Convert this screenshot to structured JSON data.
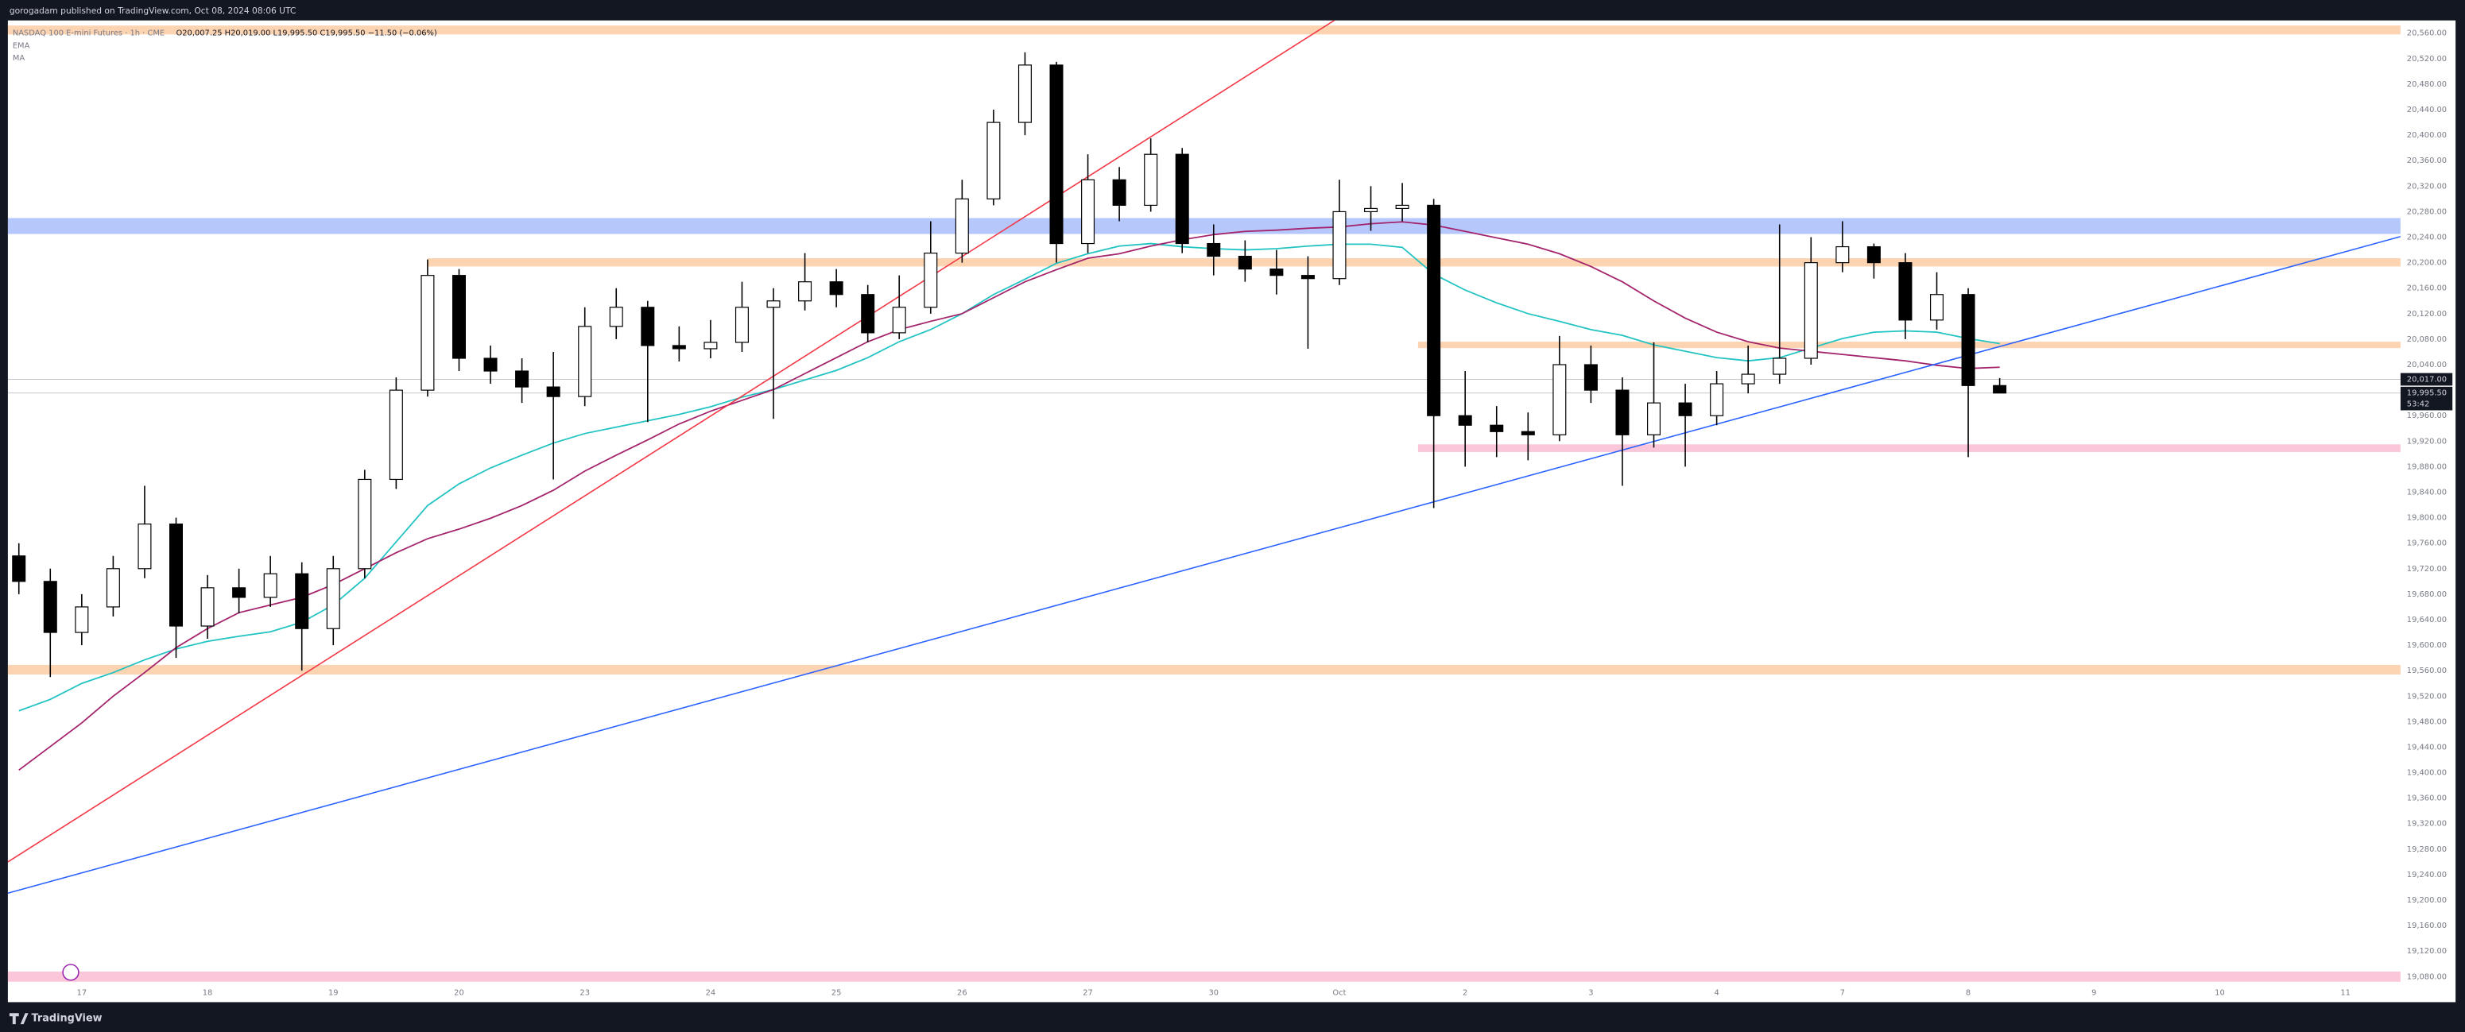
{
  "header": {
    "text": "gorogadam published on TradingView.com, Oct 08, 2024 08:06 UTC"
  },
  "footer": {
    "brand": "TradingView"
  },
  "chart_data": {
    "type": "candlestick",
    "legend": {
      "symbol": "NASDAQ 100 E-mini Futures · 1h · CME",
      "ohlc": "O20,007.25 H20,019.00 L19,995.50 C19,995.50 −11.50 (−0.06%)"
    },
    "categories": [
      null,
      null,
      "17",
      null,
      null,
      null,
      "18",
      null,
      null,
      null,
      "19",
      null,
      null,
      null,
      "20",
      null,
      null,
      null,
      "23",
      null,
      null,
      null,
      "24",
      null,
      null,
      null,
      "25",
      null,
      null,
      null,
      "26",
      null,
      null,
      null,
      "27",
      null,
      null,
      null,
      "30",
      null,
      null,
      null,
      "Oct",
      null,
      null,
      null,
      "2",
      null,
      null,
      null,
      "3",
      null,
      null,
      null,
      "4",
      null,
      null,
      null,
      "7",
      null,
      null,
      null,
      "8",
      null,
      null,
      null,
      "9",
      null,
      null,
      null,
      "10",
      null,
      null,
      null,
      "11",
      null
    ],
    "open": [
      19740,
      19700,
      19620,
      19660,
      19720,
      19790,
      19630,
      19690,
      19675,
      19712,
      19626,
      19720,
      19860,
      20000,
      20180,
      20050,
      20030,
      20005,
      19990,
      20100,
      20130,
      20070,
      20065,
      20075,
      20130,
      20140,
      20170,
      20150,
      20090,
      20130,
      20215,
      20300,
      20420,
      20510,
      20230,
      20330,
      20290,
      20370,
      20230,
      20210,
      20190,
      20180,
      20175,
      20280,
      20285,
      20290,
      19960,
      19945,
      19935,
      19930,
      20040,
      20000,
      19930,
      19980,
      19960,
      20010,
      20025,
      20050,
      20200,
      20225,
      20200,
      20110,
      20150,
      20007.25,
      null,
      null,
      null,
      null,
      null,
      null,
      null,
      null,
      null,
      null,
      null,
      null
    ],
    "high": [
      19760,
      19720,
      19680,
      19740,
      19850,
      19800,
      19710,
      19720,
      19740,
      19730,
      19740,
      19875,
      20020,
      20205,
      20190,
      20070,
      20050,
      20060,
      20130,
      20160,
      20140,
      20100,
      20110,
      20170,
      20160,
      20215,
      20190,
      20165,
      20180,
      20265,
      20330,
      20440,
      20530,
      20515,
      20370,
      20350,
      20395,
      20380,
      20260,
      20235,
      20220,
      20210,
      20330,
      20320,
      20325,
      20300,
      20030,
      19975,
      19965,
      20085,
      20070,
      20020,
      20075,
      20010,
      20030,
      20070,
      20260,
      20240,
      20265,
      20230,
      20215,
      20185,
      20160,
      20019,
      null,
      null,
      null,
      null,
      null,
      null,
      null,
      null,
      null,
      null,
      null,
      null
    ],
    "low": [
      19680,
      19550,
      19600,
      19645,
      19705,
      19580,
      19610,
      19650,
      19660,
      19560,
      19600,
      19705,
      19845,
      19990,
      20030,
      20010,
      19980,
      19860,
      19975,
      20080,
      19950,
      20045,
      20050,
      20060,
      19955,
      20125,
      20130,
      20075,
      20080,
      20120,
      20200,
      20290,
      20400,
      20200,
      20215,
      20265,
      20280,
      20215,
      20180,
      20170,
      20150,
      20065,
      20165,
      20250,
      20265,
      19815,
      19880,
      19895,
      19890,
      19920,
      19980,
      19850,
      19910,
      19880,
      19945,
      19995,
      20010,
      20040,
      20185,
      20175,
      20080,
      20095,
      19895,
      19995.5,
      null,
      null,
      null,
      null,
      null,
      null,
      null,
      null,
      null,
      null,
      null,
      null
    ],
    "close": [
      19700,
      19620,
      19660,
      19720,
      19790,
      19630,
      19690,
      19675,
      19712,
      19626,
      19720,
      19860,
      20000,
      20180,
      20050,
      20030,
      20005,
      19990,
      20100,
      20130,
      20070,
      20065,
      20075,
      20130,
      20140,
      20170,
      20150,
      20090,
      20130,
      20215,
      20300,
      20420,
      20510,
      20230,
      20330,
      20290,
      20370,
      20230,
      20210,
      20190,
      20180,
      20175,
      20280,
      20285,
      20290,
      19960,
      19945,
      19935,
      19930,
      20040,
      20000,
      19930,
      19980,
      19960,
      20010,
      20025,
      20050,
      20200,
      20225,
      20200,
      20110,
      20150,
      20007.25,
      19995.5,
      null,
      null,
      null,
      null,
      null,
      null,
      null,
      null,
      null,
      null,
      null,
      null
    ],
    "up_color": "#ffffff",
    "down_color": "#000000",
    "outline_color": "#000000",
    "series": [
      {
        "name": "EMA",
        "color": "#22c3c3",
        "values": [
          19497,
          19515,
          19540,
          19557,
          19577,
          19594,
          19606,
          19614,
          19621,
          19636,
          19663,
          19705,
          19762,
          19819,
          19853,
          19878,
          19898,
          19917,
          19932,
          19942,
          19952,
          19962,
          19974,
          19989,
          20001,
          20016,
          20031,
          20051,
          20076,
          20095,
          20120,
          20150,
          20174,
          20199,
          20214,
          20226,
          20230,
          20225,
          20222,
          20220,
          20222,
          20226,
          20229,
          20229,
          20224,
          20182,
          20157,
          20137,
          20120,
          20108,
          20095,
          20086,
          20071,
          20061,
          20051,
          20046,
          20051,
          20066,
          20081,
          20091,
          20093,
          20091,
          20081,
          20073,
          null,
          null,
          null,
          null,
          null,
          null,
          null,
          null,
          null,
          null,
          null,
          null
        ]
      },
      {
        "name": "MA",
        "color": "#a3246c",
        "values": [
          19404,
          19441,
          19478,
          19520,
          19557,
          19596,
          19626,
          19651,
          19663,
          19675,
          19695,
          19720,
          19745,
          19767,
          19782,
          19799,
          19819,
          19843,
          19873,
          19898,
          19922,
          19947,
          19967,
          19984,
          20001,
          20026,
          20051,
          20076,
          20095,
          20108,
          20120,
          20145,
          20170,
          20189,
          20207,
          20214,
          20226,
          20236,
          20244,
          20249,
          20251,
          20254,
          20256,
          20261,
          20264,
          20259,
          20249,
          20239,
          20229,
          20214,
          20194,
          20170,
          20140,
          20113,
          20091,
          20076,
          20066,
          20061,
          20056,
          20051,
          20046,
          20039,
          20034,
          20036,
          null,
          null,
          null,
          null,
          null,
          null,
          null,
          null,
          null,
          null,
          null,
          null
        ]
      }
    ],
    "zones": [
      {
        "low": 20558,
        "high": 20572,
        "start": -0.35,
        "color": "#fdd4b2"
      },
      {
        "low": 20245,
        "high": 20270,
        "start": -0.35,
        "color": "#b6c8fb"
      },
      {
        "low": 20194,
        "high": 20207,
        "start": 13,
        "color": "#fdd4b2"
      },
      {
        "low": 20066,
        "high": 20076,
        "start": 44.5,
        "color": "#fdd4b2"
      },
      {
        "low": 19903,
        "high": 19915,
        "start": 44.5,
        "color": "#fbc6d9"
      },
      {
        "low": 19554,
        "high": 19569,
        "start": -0.35,
        "color": "#fdd4b2"
      },
      {
        "low": 19072,
        "high": 19088,
        "start": -0.35,
        "color": "#fbc6d9"
      }
    ],
    "lines": [
      {
        "color": "#f23645",
        "from": [
          -0.35,
          19260
        ],
        "to": [
          41.9,
          20582
        ]
      },
      {
        "color": "#2962ff",
        "from": [
          -0.35,
          19211
        ],
        "to": [
          75.75,
          20241
        ]
      }
    ],
    "price_labels": [
      {
        "value": 20017,
        "label": "20,017.00"
      },
      {
        "value": 19995.5,
        "label": "19,995.50",
        "countdown": "53:42"
      }
    ],
    "ylim": [
      19040,
      20580
    ],
    "yticks": [
      {
        "value": 19080,
        "label": "19,080.00"
      },
      {
        "value": 19120,
        "label": "19,120.00"
      },
      {
        "value": 19160,
        "label": "19,160.00"
      },
      {
        "value": 19200,
        "label": "19,200.00"
      },
      {
        "value": 19240,
        "label": "19,240.00"
      },
      {
        "value": 19280,
        "label": "19,280.00"
      },
      {
        "value": 19320,
        "label": "19,320.00"
      },
      {
        "value": 19360,
        "label": "19,360.00"
      },
      {
        "value": 19400,
        "label": "19,400.00"
      },
      {
        "value": 19440,
        "label": "19,440.00"
      },
      {
        "value": 19480,
        "label": "19,480.00"
      },
      {
        "value": 19520,
        "label": "19,520.00"
      },
      {
        "value": 19560,
        "label": "19,560.00"
      },
      {
        "value": 19600,
        "label": "19,600.00"
      },
      {
        "value": 19640,
        "label": "19,640.00"
      },
      {
        "value": 19680,
        "label": "19,680.00"
      },
      {
        "value": 19720,
        "label": "19,720.00"
      },
      {
        "value": 19760,
        "label": "19,760.00"
      },
      {
        "value": 19800,
        "label": "19,800.00"
      },
      {
        "value": 19840,
        "label": "19,840.00"
      },
      {
        "value": 19880,
        "label": "19,880.00"
      },
      {
        "value": 19920,
        "label": "19,920.00"
      },
      {
        "value": 19960,
        "label": "19,960.00"
      },
      {
        "value": 20000,
        "label": "20,000.00"
      },
      {
        "value": 20040,
        "label": "20,040.00"
      },
      {
        "value": 20080,
        "label": "20,080.00"
      },
      {
        "value": 20120,
        "label": "20,120.00"
      },
      {
        "value": 20160,
        "label": "20,160.00"
      },
      {
        "value": 20200,
        "label": "20,200.00"
      },
      {
        "value": 20240,
        "label": "20,240.00"
      },
      {
        "value": 20280,
        "label": "20,280.00"
      },
      {
        "value": 20320,
        "label": "20,320.00"
      },
      {
        "value": 20360,
        "label": "20,360.00"
      },
      {
        "value": 20400,
        "label": "20,400.00"
      },
      {
        "value": 20440,
        "label": "20,440.00"
      },
      {
        "value": 20480,
        "label": "20,480.00"
      },
      {
        "value": 20520,
        "label": "20,520.00"
      },
      {
        "value": 20560,
        "label": "20,560.00"
      }
    ]
  }
}
